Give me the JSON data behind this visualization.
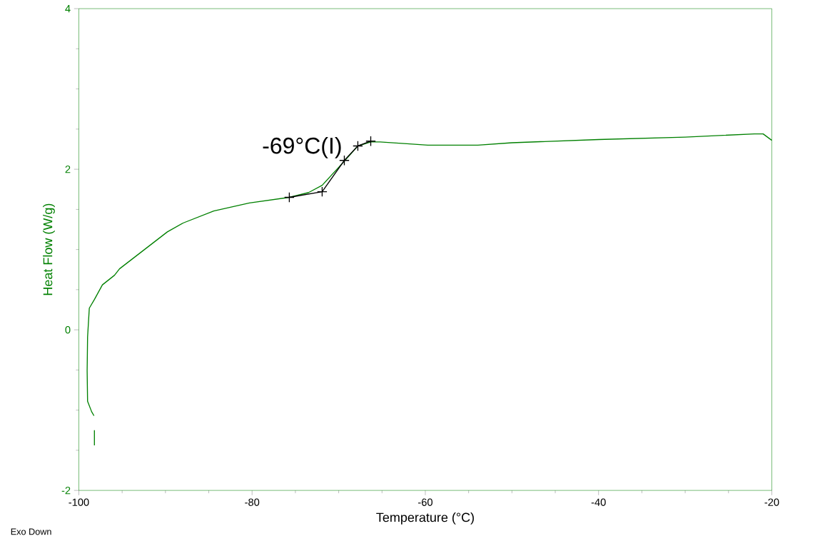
{
  "chart_data": {
    "type": "line",
    "xlabel": "Temperature (°C)",
    "ylabel": "Heat Flow (W/g)",
    "xlim": [
      -100,
      -20
    ],
    "ylim": [
      -2,
      4
    ],
    "xticks": [
      -100,
      -80,
      -60,
      -40,
      -20
    ],
    "yticks": [
      -2,
      0,
      2,
      4
    ],
    "grid": false,
    "series": [
      {
        "color": "#008000",
        "marker": "none",
        "x": [
          -98.2,
          -98.2
        ],
        "values": [
          -1.44,
          -1.25
        ]
      },
      {
        "color": "#008000",
        "marker": "none",
        "x": [
          -98.25,
          -98.52,
          -98.99,
          -99.04,
          -98.99,
          -98.79,
          -98.19,
          -97.28,
          -95.88,
          -95.3,
          -89.78,
          -87.97,
          -84.43,
          -80.31,
          -75.7,
          -73.47,
          -71.91,
          -69.35,
          -67.79,
          -66.3,
          -65.23,
          -62.43,
          -59.71,
          -53.94,
          -50.0,
          -40.0,
          -30.0,
          -22.0,
          -21.0,
          -20.0
        ],
        "values": [
          -1.07,
          -1.02,
          -0.89,
          -0.51,
          -0.09,
          0.27,
          0.38,
          0.56,
          0.68,
          0.76,
          1.22,
          1.33,
          1.48,
          1.58,
          1.65,
          1.71,
          1.8,
          2.1,
          2.29,
          2.34,
          2.34,
          2.32,
          2.3,
          2.3,
          2.33,
          2.37,
          2.4,
          2.44,
          2.44,
          2.36
        ]
      },
      {
        "color": "#000000",
        "marker": "cross",
        "x": [
          -75.7,
          -71.91,
          -69.35,
          -67.79,
          -66.3
        ],
        "values": [
          1.65,
          1.72,
          2.11,
          2.29,
          2.35
        ]
      }
    ],
    "annotations": [
      {
        "text": "-69°C(I)",
        "x": -69.35,
        "y": 2.11
      },
      "Exo Down"
    ]
  }
}
